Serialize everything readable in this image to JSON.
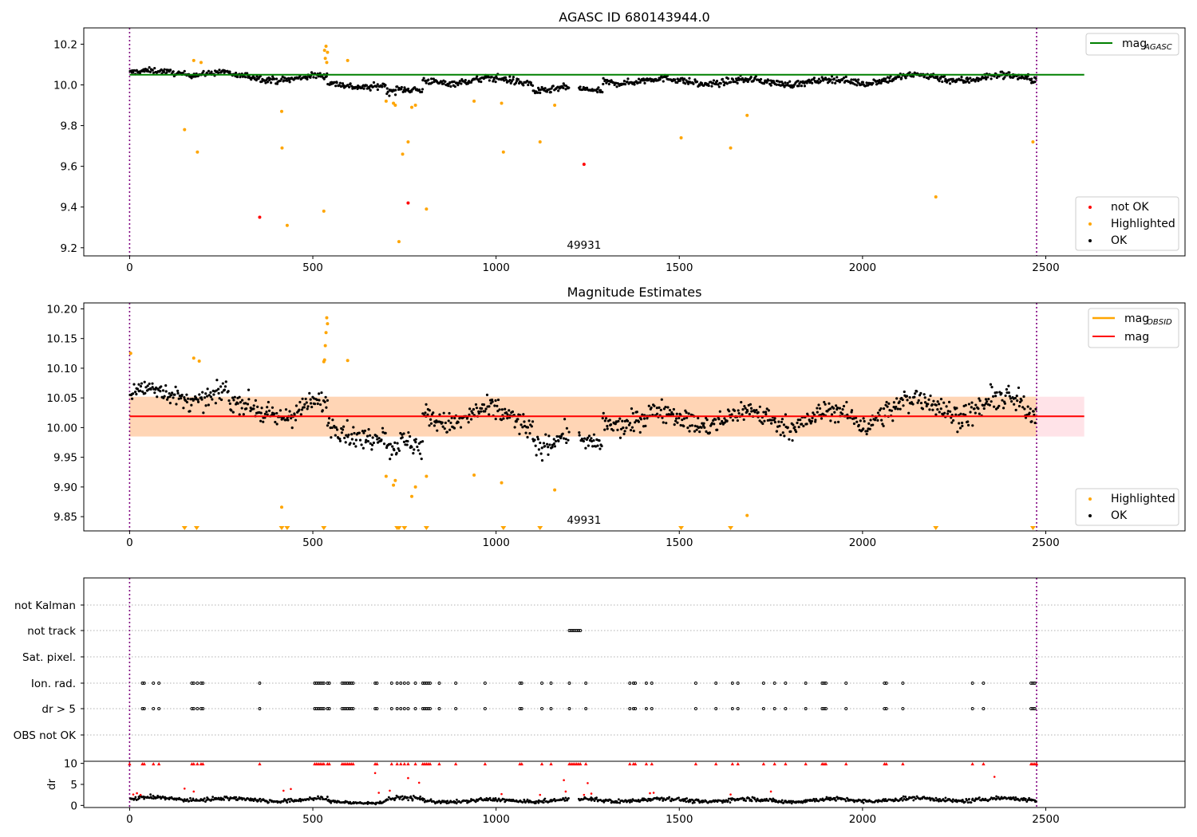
{
  "chart_data": [
    {
      "type": "scatter",
      "title": "AGASC ID 680143944.0",
      "xlim": [
        -125,
        2880
      ],
      "ylim": [
        9.16,
        10.28
      ],
      "xticks": [
        0,
        500,
        1000,
        1500,
        2000,
        2500
      ],
      "yticks": [
        9.2,
        9.4,
        9.6,
        9.8,
        10.0,
        10.2
      ],
      "ytick_labels": [
        "9.2",
        "9.4",
        "9.6",
        "9.8",
        "10.0",
        "10.2"
      ],
      "annotation": "49931",
      "annotation_x": 1240,
      "hline": {
        "name": "mag_AGASC",
        "value": 10.05,
        "xmin": 0,
        "xmax": 2605,
        "color": "#008000"
      },
      "vlines": [
        0,
        2475
      ],
      "series": [
        {
          "name": "not OK",
          "color": "#ff0000",
          "points": [
            [
              355,
              9.35
            ],
            [
              760,
              9.42
            ],
            [
              1240,
              9.61
            ]
          ]
        },
        {
          "name": "Highlighted",
          "color": "#ffa500",
          "points": [
            [
              150,
              9.78
            ],
            [
              175,
              10.12
            ],
            [
              185,
              9.67
            ],
            [
              195,
              10.11
            ],
            [
              415,
              9.87
            ],
            [
              416,
              9.69
            ],
            [
              430,
              9.31
            ],
            [
              530,
              9.38
            ],
            [
              532,
              10.17
            ],
            [
              534,
              10.13
            ],
            [
              536,
              10.19
            ],
            [
              538,
              10.11
            ],
            [
              540,
              10.16
            ],
            [
              595,
              10.12
            ],
            [
              700,
              9.92
            ],
            [
              720,
              9.91
            ],
            [
              725,
              9.9
            ],
            [
              735,
              9.23
            ],
            [
              745,
              9.66
            ],
            [
              760,
              9.72
            ],
            [
              770,
              9.89
            ],
            [
              780,
              9.9
            ],
            [
              810,
              9.39
            ],
            [
              940,
              9.92
            ],
            [
              1015,
              9.91
            ],
            [
              1020,
              9.67
            ],
            [
              1120,
              9.72
            ],
            [
              1160,
              9.9
            ],
            [
              1505,
              9.74
            ],
            [
              1640,
              9.69
            ],
            [
              1685,
              9.85
            ],
            [
              2200,
              9.45
            ],
            [
              2465,
              9.72
            ]
          ]
        },
        {
          "name": "OK",
          "color": "#000000",
          "points": []
        }
      ],
      "ok_segments": [
        {
          "x0": 0,
          "x1": 270,
          "base": 10.06,
          "spread": 0.03
        },
        {
          "x0": 270,
          "x1": 540,
          "base": 10.035,
          "spread": 0.035
        },
        {
          "x0": 540,
          "x1": 700,
          "base": 10.0,
          "spread": 0.035
        },
        {
          "x0": 700,
          "x1": 800,
          "base": 9.965,
          "spread": 0.04
        },
        {
          "x0": 800,
          "x1": 960,
          "base": 10.02,
          "spread": 0.035
        },
        {
          "x0": 960,
          "x1": 1100,
          "base": 10.02,
          "spread": 0.04
        },
        {
          "x0": 1100,
          "x1": 1200,
          "base": 9.98,
          "spread": 0.035
        },
        {
          "x0": 1225,
          "x1": 1290,
          "base": 9.97,
          "spread": 0.03
        },
        {
          "x0": 1290,
          "x1": 1550,
          "base": 10.02,
          "spread": 0.035
        },
        {
          "x0": 1550,
          "x1": 2030,
          "base": 10.015,
          "spread": 0.035
        },
        {
          "x0": 2030,
          "x1": 2475,
          "base": 10.035,
          "spread": 0.04
        }
      ],
      "legend_upper": [
        {
          "label": "mag",
          "sub": "AGASC",
          "color": "#008000"
        }
      ],
      "legend_lower": [
        {
          "label": "not OK",
          "color": "#ff0000"
        },
        {
          "label": "Highlighted",
          "color": "#ffa500"
        },
        {
          "label": "OK",
          "color": "#000000"
        }
      ]
    },
    {
      "type": "scatter",
      "title": "Magnitude Estimates",
      "xlim": [
        -125,
        2880
      ],
      "ylim": [
        9.826,
        10.21
      ],
      "xticks": [
        0,
        500,
        1000,
        1500,
        2000,
        2500
      ],
      "yticks": [
        9.85,
        9.9,
        9.95,
        10.0,
        10.05,
        10.1,
        10.15,
        10.2
      ],
      "ytick_labels": [
        "9.85",
        "9.90",
        "9.95",
        "10.00",
        "10.05",
        "10.10",
        "10.15",
        "10.20"
      ],
      "annotation": "49931",
      "annotation_x": 1240,
      "mean_line": {
        "name": "mag",
        "value": 10.019,
        "xmin": 0,
        "xmax": 2605,
        "color": "#ff0000"
      },
      "mean_band": {
        "low": 9.985,
        "high": 10.052,
        "xmin": 0,
        "xmax": 2605,
        "color": "#ffc0cb"
      },
      "obsid_band": {
        "low": 9.985,
        "high": 10.052,
        "xmin": 0,
        "xmax": 2475,
        "color": "#ffa500"
      },
      "vlines": [
        0,
        2475
      ],
      "highlighted_points": [
        [
          3,
          10.125
        ],
        [
          175,
          10.117
        ],
        [
          190,
          10.112
        ],
        [
          415,
          9.866
        ],
        [
          530,
          10.111
        ],
        [
          532,
          10.114
        ],
        [
          534,
          10.138
        ],
        [
          536,
          10.16
        ],
        [
          538,
          10.185
        ],
        [
          540,
          10.175
        ],
        [
          595,
          10.113
        ],
        [
          700,
          9.918
        ],
        [
          720,
          9.903
        ],
        [
          725,
          9.911
        ],
        [
          770,
          9.884
        ],
        [
          780,
          9.9
        ],
        [
          810,
          9.918
        ],
        [
          940,
          9.92
        ],
        [
          1015,
          9.907
        ],
        [
          1160,
          9.895
        ],
        [
          1685,
          9.852
        ]
      ],
      "lower_limit_x": [
        150,
        183,
        415,
        430,
        530,
        730,
        735,
        750,
        810,
        1020,
        1120,
        1505,
        1640,
        2200,
        2465
      ],
      "ok_segments": [
        {
          "x0": 0,
          "x1": 270,
          "base": 10.055,
          "spread": 0.035
        },
        {
          "x0": 270,
          "x1": 540,
          "base": 10.03,
          "spread": 0.04
        },
        {
          "x0": 540,
          "x1": 700,
          "base": 9.995,
          "spread": 0.04
        },
        {
          "x0": 700,
          "x1": 800,
          "base": 9.96,
          "spread": 0.045
        },
        {
          "x0": 800,
          "x1": 960,
          "base": 10.02,
          "spread": 0.04
        },
        {
          "x0": 960,
          "x1": 1100,
          "base": 10.015,
          "spread": 0.045
        },
        {
          "x0": 1100,
          "x1": 1200,
          "base": 9.98,
          "spread": 0.04
        },
        {
          "x0": 1225,
          "x1": 1290,
          "base": 9.97,
          "spread": 0.03
        },
        {
          "x0": 1290,
          "x1": 1550,
          "base": 10.015,
          "spread": 0.04
        },
        {
          "x0": 1550,
          "x1": 2030,
          "base": 10.015,
          "spread": 0.04
        },
        {
          "x0": 2030,
          "x1": 2475,
          "base": 10.035,
          "spread": 0.045
        }
      ],
      "legend_upper": [
        {
          "label": "mag",
          "sub": "OBSID",
          "color": "#ffa500"
        },
        {
          "label": "mag",
          "sub": "",
          "color": "#ff0000"
        }
      ],
      "legend_lower": [
        {
          "label": "Highlighted",
          "color": "#ffa500"
        },
        {
          "label": "OK",
          "color": "#000000"
        }
      ]
    },
    {
      "type": "scatter",
      "title": "",
      "xlim": [
        -125,
        2880
      ],
      "xticks": [
        0,
        500,
        1000,
        1500,
        2000,
        2500
      ],
      "flag_labels": [
        "not Kalman",
        "not track",
        "Sat. pixel.",
        "Ion. rad.",
        "dr > 5",
        "OBS not OK"
      ],
      "vlines": [
        0,
        2475
      ],
      "flag_points": {
        "not track": [
          1200,
          1205,
          1210,
          1215,
          1220,
          1225,
          1230
        ],
        "Ion. rad.": [
          35,
          40,
          65,
          80,
          170,
          175,
          185,
          195,
          200,
          355,
          505,
          510,
          515,
          520,
          525,
          530,
          540,
          545,
          580,
          585,
          590,
          595,
          600,
          605,
          610,
          670,
          675,
          715,
          730,
          740,
          750,
          760,
          780,
          800,
          805,
          810,
          815,
          820,
          845,
          890,
          970,
          1065,
          1070,
          1125,
          1150,
          1200,
          1245,
          1365,
          1375,
          1380,
          1410,
          1425,
          1545,
          1600,
          1645,
          1660,
          1730,
          1760,
          1790,
          1845,
          1890,
          1895,
          1900,
          1955,
          2060,
          2065,
          2110,
          2300,
          2330,
          2460,
          2465,
          2470
        ],
        "dr > 5": [
          35,
          40,
          65,
          80,
          170,
          175,
          185,
          195,
          200,
          355,
          505,
          510,
          515,
          520,
          525,
          530,
          540,
          545,
          580,
          585,
          590,
          595,
          600,
          605,
          610,
          670,
          675,
          715,
          730,
          740,
          750,
          760,
          780,
          800,
          805,
          810,
          815,
          820,
          845,
          890,
          970,
          1065,
          1070,
          1125,
          1150,
          1200,
          1245,
          1365,
          1375,
          1380,
          1410,
          1425,
          1545,
          1600,
          1645,
          1660,
          1730,
          1760,
          1790,
          1845,
          1890,
          1895,
          1900,
          1955,
          2060,
          2065,
          2110,
          2300,
          2330,
          2460,
          2465,
          2470
        ]
      }
    },
    {
      "type": "scatter",
      "title": "",
      "xlim": [
        -125,
        2880
      ],
      "ylim": [
        -0.5,
        10.5
      ],
      "ylabel": "dr",
      "xticks": [
        0,
        500,
        1000,
        1500,
        2000,
        2500
      ],
      "xtick_labels": [
        "0",
        "500",
        "1000",
        "1500",
        "2000",
        "2500"
      ],
      "yticks": [
        0,
        5,
        10
      ],
      "ytick_labels": [
        "0",
        "5",
        "10"
      ],
      "vlines": [
        0,
        2475
      ],
      "clipped_x": [
        0,
        35,
        40,
        65,
        80,
        170,
        175,
        185,
        195,
        200,
        355,
        505,
        510,
        515,
        520,
        525,
        530,
        540,
        545,
        580,
        585,
        590,
        595,
        600,
        605,
        610,
        670,
        675,
        715,
        730,
        740,
        750,
        760,
        780,
        800,
        805,
        810,
        815,
        820,
        845,
        890,
        970,
        1065,
        1070,
        1125,
        1150,
        1200,
        1205,
        1210,
        1215,
        1220,
        1225,
        1230,
        1245,
        1365,
        1375,
        1380,
        1410,
        1425,
        1545,
        1600,
        1645,
        1660,
        1730,
        1760,
        1790,
        1845,
        1890,
        1895,
        1900,
        1955,
        2060,
        2065,
        2110,
        2300,
        2330,
        2460,
        2465,
        2470,
        2475
      ],
      "red_points": [
        [
          10,
          2.6
        ],
        [
          20,
          2.9
        ],
        [
          30,
          2.5
        ],
        [
          150,
          4.0
        ],
        [
          175,
          3.3
        ],
        [
          420,
          3.5
        ],
        [
          440,
          3.9
        ],
        [
          670,
          7.7
        ],
        [
          680,
          3.0
        ],
        [
          710,
          3.5
        ],
        [
          760,
          6.5
        ],
        [
          790,
          5.4
        ],
        [
          1015,
          2.7
        ],
        [
          1120,
          2.5
        ],
        [
          1185,
          6.0
        ],
        [
          1190,
          3.3
        ],
        [
          1240,
          2.5
        ],
        [
          1250,
          5.3
        ],
        [
          1260,
          2.8
        ],
        [
          1420,
          2.9
        ],
        [
          1430,
          3.0
        ],
        [
          1640,
          2.6
        ],
        [
          1750,
          3.3
        ],
        [
          2360,
          6.8
        ]
      ],
      "ok_segments": [
        {
          "x0": 0,
          "x1": 270,
          "base": 1.6,
          "spread": 1.0
        },
        {
          "x0": 270,
          "x1": 540,
          "base": 1.3,
          "spread": 1.0
        },
        {
          "x0": 540,
          "x1": 700,
          "base": 0.8,
          "spread": 0.8
        },
        {
          "x0": 700,
          "x1": 800,
          "base": 1.4,
          "spread": 1.2
        },
        {
          "x0": 800,
          "x1": 1100,
          "base": 1.1,
          "spread": 0.9
        },
        {
          "x0": 1100,
          "x1": 1200,
          "base": 1.2,
          "spread": 0.9
        },
        {
          "x0": 1225,
          "x1": 1550,
          "base": 1.3,
          "spread": 1.0
        },
        {
          "x0": 1550,
          "x1": 2030,
          "base": 1.2,
          "spread": 1.0
        },
        {
          "x0": 2030,
          "x1": 2475,
          "base": 1.4,
          "spread": 1.0
        }
      ]
    }
  ]
}
